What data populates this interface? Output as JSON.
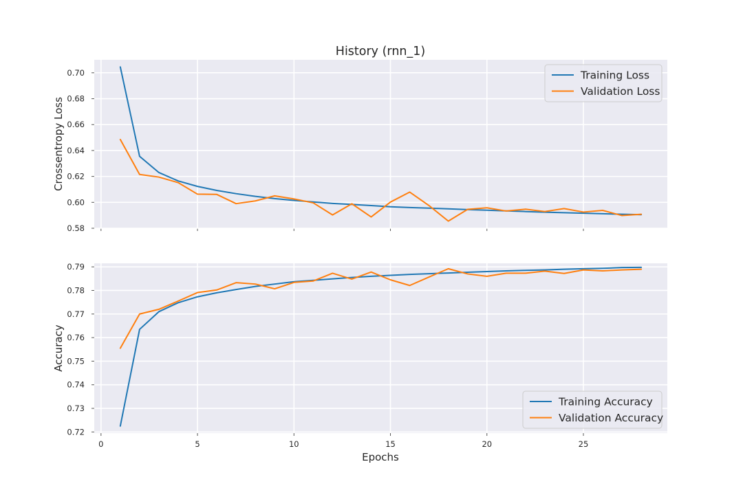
{
  "chart_data": {
    "type": "line",
    "title": "History (rnn_1)",
    "xlabel": "Epochs",
    "colors": {
      "training": "#1f77b4",
      "validation": "#ff7f0e",
      "background": "#eaeaf2",
      "grid": "#ffffff"
    },
    "grid": true,
    "x": [
      1,
      2,
      3,
      4,
      5,
      6,
      7,
      8,
      9,
      10,
      11,
      12,
      13,
      14,
      15,
      16,
      17,
      18,
      19,
      20,
      21,
      22,
      23,
      24,
      25,
      26,
      27,
      28
    ],
    "xticks": [
      0,
      5,
      10,
      15,
      20,
      25
    ],
    "xlim": [
      -0.35,
      29.35
    ],
    "panels": [
      {
        "ylabel": "Crossentropy Loss",
        "ylim": [
          0.58,
          0.71
        ],
        "yticks": [
          0.58,
          0.6,
          0.62,
          0.64,
          0.66,
          0.68,
          0.7
        ],
        "ytick_labels": [
          "0.58",
          "0.60",
          "0.62",
          "0.64",
          "0.66",
          "0.68",
          "0.70"
        ],
        "legend_position": "upper right",
        "series": [
          {
            "name": "Training Loss",
            "color": "#1f77b4",
            "values": [
              0.7045,
              0.6355,
              0.623,
              0.6165,
              0.6123,
              0.6092,
              0.6067,
              0.6046,
              0.6029,
              0.6015,
              0.6003,
              0.5992,
              0.5984,
              0.5975,
              0.5966,
              0.596,
              0.5955,
              0.595,
              0.5944,
              0.5939,
              0.5934,
              0.5929,
              0.5924,
              0.592,
              0.5916,
              0.5912,
              0.5908,
              0.5905
            ]
          },
          {
            "name": "Validation Loss",
            "color": "#ff7f0e",
            "values": [
              0.6485,
              0.6215,
              0.6195,
              0.6152,
              0.6063,
              0.6061,
              0.599,
              0.6011,
              0.605,
              0.6026,
              0.5996,
              0.5903,
              0.5989,
              0.5887,
              0.6002,
              0.6079,
              0.5975,
              0.5855,
              0.5946,
              0.5958,
              0.5933,
              0.5947,
              0.5929,
              0.5952,
              0.5925,
              0.5938,
              0.5898,
              0.5908
            ]
          }
        ]
      },
      {
        "ylabel": "Accuracy",
        "ylim": [
          0.7195,
          0.7915
        ],
        "yticks": [
          0.72,
          0.73,
          0.74,
          0.75,
          0.76,
          0.77,
          0.78,
          0.79
        ],
        "ytick_labels": [
          "0.72",
          "0.73",
          "0.74",
          "0.75",
          "0.76",
          "0.77",
          "0.78",
          "0.79"
        ],
        "legend_position": "lower right",
        "series": [
          {
            "name": "Training Accuracy",
            "color": "#1f77b4",
            "values": [
              0.7225,
              0.7635,
              0.771,
              0.7748,
              0.7773,
              0.779,
              0.7804,
              0.7817,
              0.7827,
              0.7837,
              0.7843,
              0.7849,
              0.7855,
              0.786,
              0.7864,
              0.7868,
              0.7871,
              0.7874,
              0.7877,
              0.788,
              0.7883,
              0.7885,
              0.7887,
              0.789,
              0.7892,
              0.7894,
              0.7897,
              0.7898
            ]
          },
          {
            "name": "Validation Accuracy",
            "color": "#ff7f0e",
            "values": [
              0.7555,
              0.77,
              0.772,
              0.7755,
              0.7791,
              0.7802,
              0.7833,
              0.7827,
              0.7807,
              0.7834,
              0.784,
              0.7873,
              0.7848,
              0.7878,
              0.7845,
              0.7821,
              0.7857,
              0.7892,
              0.787,
              0.786,
              0.7873,
              0.7873,
              0.7882,
              0.7872,
              0.7887,
              0.7883,
              0.7887,
              0.789
            ]
          }
        ]
      }
    ]
  }
}
